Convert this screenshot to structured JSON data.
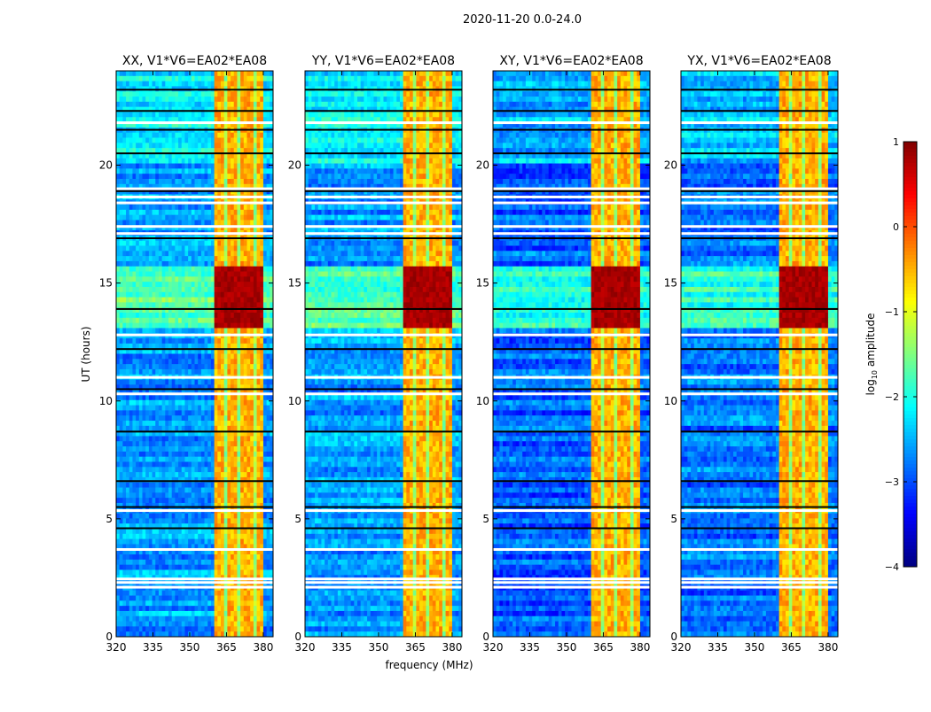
{
  "chart_data": {
    "type": "heatmap",
    "suptitle": "2020-11-20 0.0-24.0",
    "xlabel": "frequency (MHz)",
    "ylabel": "UT (hours)",
    "xlim": [
      320,
      384
    ],
    "ylim": [
      0,
      24
    ],
    "xticks": [
      320,
      335,
      350,
      365,
      380
    ],
    "yticks": [
      0,
      5,
      10,
      15,
      20
    ],
    "colormap": "jet",
    "colorbar": {
      "label_main": "log",
      "label_sub": "10",
      "label_tail": " amplitude",
      "range": [
        -4,
        1
      ],
      "ticks": [
        1,
        0,
        -1,
        -2,
        -3,
        -4
      ]
    },
    "panels": [
      {
        "title": "XX, V1*V6=EA02*EA08",
        "base_level": -2.6
      },
      {
        "title": "YY, V1*V6=EA02*EA08",
        "base_level": -2.6
      },
      {
        "title": "XY, V1*V6=EA02*EA08",
        "base_level": -2.9
      },
      {
        "title": "YX, V1*V6=EA02*EA08",
        "base_level": -2.8
      }
    ],
    "rfi_band_mhz": [
      360,
      380
    ],
    "rfi_band_level": -0.6,
    "strong_rfi_hours": [
      13.0,
      15.6
    ],
    "strong_rfi_level": 0.8,
    "flagged_hours": [
      2.1,
      2.3,
      2.45,
      3.7,
      5.35,
      10.3,
      11.0,
      12.8,
      17.1,
      17.4,
      18.4,
      18.65,
      19.0,
      21.8
    ],
    "zero_hours": [
      4.6,
      5.5,
      6.6,
      8.7,
      10.5,
      12.2,
      13.9,
      16.9,
      18.9,
      20.5,
      21.5,
      22.3,
      23.2
    ]
  }
}
